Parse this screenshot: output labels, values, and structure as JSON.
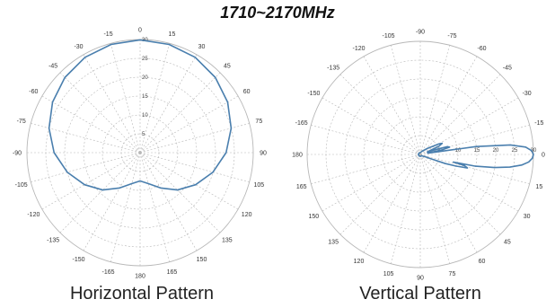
{
  "title": "1710~2170MHz",
  "chart_data": [
    {
      "type": "line",
      "subtype": "polar",
      "caption": "Horizontal Pattern",
      "color": "#4a7fae",
      "zero_direction": "top",
      "angle_step": 15,
      "radial_labels": [
        "0",
        "5",
        "10",
        "15",
        "20",
        "25",
        "30"
      ],
      "angle_labels": [
        {
          "angle": 0,
          "label": "0"
        },
        {
          "angle": 15,
          "label": "15"
        },
        {
          "angle": 30,
          "label": "30"
        },
        {
          "angle": 45,
          "label": "45"
        },
        {
          "angle": 60,
          "label": "60"
        },
        {
          "angle": 75,
          "label": "75"
        },
        {
          "angle": 90,
          "label": "90"
        },
        {
          "angle": 105,
          "label": "105"
        },
        {
          "angle": 120,
          "label": "120"
        },
        {
          "angle": 135,
          "label": "135"
        },
        {
          "angle": 150,
          "label": "150"
        },
        {
          "angle": 165,
          "label": "165"
        },
        {
          "angle": 180,
          "label": "180"
        },
        {
          "angle": 195,
          "label": "-165"
        },
        {
          "angle": 210,
          "label": "-150"
        },
        {
          "angle": 225,
          "label": "-135"
        },
        {
          "angle": 240,
          "label": "-120"
        },
        {
          "angle": 255,
          "label": "-105"
        },
        {
          "angle": 270,
          "label": "-90"
        },
        {
          "angle": 285,
          "label": "-75"
        },
        {
          "angle": 300,
          "label": "-60"
        },
        {
          "angle": 315,
          "label": "-45"
        },
        {
          "angle": 330,
          "label": "-30"
        },
        {
          "angle": 345,
          "label": "-15"
        }
      ],
      "series": [
        {
          "angles": [
            0,
            15,
            30,
            45,
            60,
            75,
            90,
            105,
            120,
            135,
            150,
            165,
            180,
            195,
            210,
            225,
            240,
            255,
            270,
            285,
            300,
            315,
            330,
            345
          ],
          "attenuation_db": [
            0.1,
            0.3,
            0.8,
            1.8,
            3.2,
            5,
            7.2,
            10,
            13,
            16,
            19.2,
            21.5,
            22.5,
            21.5,
            19.2,
            16,
            13,
            10,
            7.2,
            5,
            3.2,
            1.8,
            0.8,
            0.3
          ]
        }
      ]
    },
    {
      "type": "line",
      "subtype": "polar",
      "caption": "Vertical Pattern",
      "color": "#4a7fae",
      "zero_direction": "right",
      "angle_step": 15,
      "radial_labels": [
        "0",
        "5",
        "10",
        "15",
        "20",
        "25",
        "30"
      ],
      "angle_labels": [
        {
          "angle": 0,
          "label": "0"
        },
        {
          "angle": 15,
          "label": "15"
        },
        {
          "angle": 30,
          "label": "30"
        },
        {
          "angle": 45,
          "label": "45"
        },
        {
          "angle": 60,
          "label": "60"
        },
        {
          "angle": 75,
          "label": "75"
        },
        {
          "angle": 90,
          "label": "90"
        },
        {
          "angle": 105,
          "label": "105"
        },
        {
          "angle": 120,
          "label": "120"
        },
        {
          "angle": 135,
          "label": "135"
        },
        {
          "angle": 150,
          "label": "150"
        },
        {
          "angle": 165,
          "label": "165"
        },
        {
          "angle": 180,
          "label": "180"
        },
        {
          "angle": 195,
          "label": "-165"
        },
        {
          "angle": 210,
          "label": "-150"
        },
        {
          "angle": 225,
          "label": "-135"
        },
        {
          "angle": 240,
          "label": "-120"
        },
        {
          "angle": 255,
          "label": "-105"
        },
        {
          "angle": 270,
          "label": "-90"
        },
        {
          "angle": 285,
          "label": "-75"
        },
        {
          "angle": 300,
          "label": "-60"
        },
        {
          "angle": 315,
          "label": "-45"
        },
        {
          "angle": 330,
          "label": "-30"
        },
        {
          "angle": 345,
          "label": "-15"
        }
      ],
      "series": [
        {
          "angles": [
            0,
            2,
            4,
            6,
            8,
            10,
            12,
            13,
            14,
            16,
            18,
            20,
            22,
            25,
            30,
            40,
            60,
            90,
            130,
            170,
            180,
            190,
            230,
            270,
            300,
            320,
            330,
            333,
            336,
            340,
            342,
            344,
            346,
            348,
            350,
            352,
            354,
            356,
            358
          ],
          "attenuation_db": [
            0,
            0.3,
            1.2,
            3,
            6,
            10,
            15,
            21,
            18,
            17,
            20,
            23,
            27,
            28.5,
            29,
            29.5,
            29.5,
            29.5,
            29.5,
            29.5,
            29.5,
            29.5,
            29.5,
            29.5,
            29,
            27.5,
            24.5,
            23.5,
            24.5,
            28,
            26,
            22.5,
            22,
            24,
            28,
            15,
            6,
            2,
            0.5
          ]
        }
      ]
    }
  ]
}
